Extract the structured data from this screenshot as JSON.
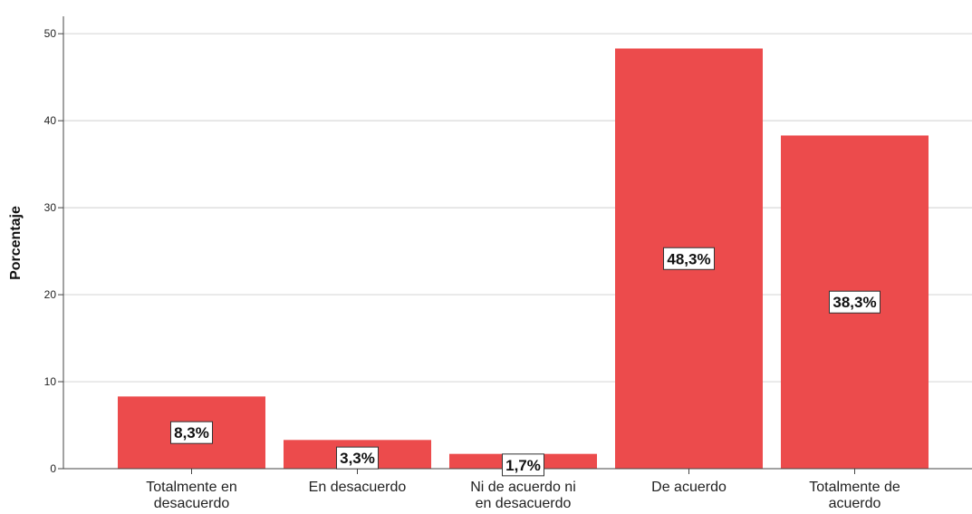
{
  "chart_data": {
    "type": "bar",
    "categories": [
      [
        "Totalmente en",
        "desacuerdo"
      ],
      [
        "En desacuerdo"
      ],
      [
        "Ni de acuerdo ni",
        "en desacuerdo"
      ],
      [
        "De acuerdo"
      ],
      [
        "Totalmente de",
        "acuerdo"
      ]
    ],
    "values": [
      8.3,
      3.3,
      1.7,
      48.3,
      38.3
    ],
    "data_labels": [
      "8,3%",
      "3,3%",
      "1,7%",
      "48,3%",
      "38,3%"
    ],
    "ylabel": "Porcentaje",
    "ylim": [
      0,
      52
    ],
    "yticks": [
      0,
      10,
      20,
      30,
      40,
      50
    ],
    "grid": true,
    "colors": {
      "bar": "#ec4b4c"
    }
  }
}
